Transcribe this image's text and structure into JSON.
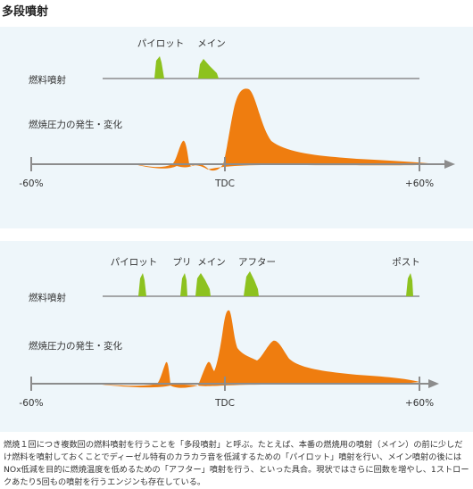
{
  "title": "多段噴射",
  "colors": {
    "injection": "#8dc21f",
    "pressure": "#ef7d0f",
    "axis": "#8c8c8c",
    "panel": "#eef6fa"
  },
  "diagrams": [
    {
      "injection_label": "燃料噴射",
      "pressure_label": "燃焼圧力の発生・変化",
      "axis_labels": {
        "left": "-60%",
        "center": "TDC",
        "right": "+60%"
      },
      "pulses": [
        {
          "name": "パイロット",
          "label": "パイロット"
        },
        {
          "name": "メイン",
          "label": "メイン"
        }
      ]
    },
    {
      "injection_label": "燃料噴射",
      "pressure_label": "燃焼圧力の発生・変化",
      "axis_labels": {
        "left": "-60%",
        "center": "TDC",
        "right": "+60%"
      },
      "pulses": [
        {
          "name": "パイロット",
          "label": "パイロット"
        },
        {
          "name": "プリ",
          "label": "プリ"
        },
        {
          "name": "メイン",
          "label": "メイン"
        },
        {
          "name": "アフター",
          "label": "アフター"
        },
        {
          "name": "ポスト",
          "label": "ポスト"
        }
      ]
    }
  ],
  "description": "燃焼１回につき複数回の燃料噴射を行うことを「多段噴射」と呼ぶ。たとえば、本番の燃焼用の噴射（メイン）の前に少しだけ燃料を噴射しておくことでディーゼル特有のカラカラ音を低減するための「パイロット」噴射を行い、メイン噴射の後にはNOx低減を目的に燃焼温度を低めるための「アフター」噴射を行う、といった具合。現状ではさらに回数を増やし、1ストロークあたり5回もの噴射を行うエンジンも存在している。"
}
